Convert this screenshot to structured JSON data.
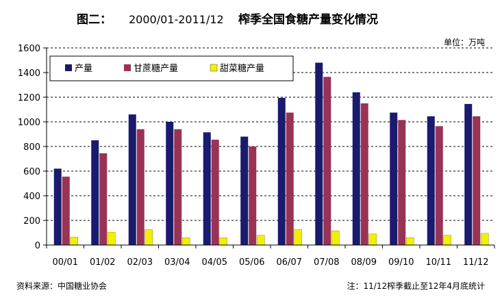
{
  "chart_data": {
    "type": "bar",
    "title_prefix": "图二：",
    "title_range": "2000/01-2011/12",
    "title_main": "榨季全国食糖产量变化情况",
    "unit": "单位：万吨",
    "categories": [
      "00/01",
      "01/02",
      "02/03",
      "03/04",
      "04/05",
      "05/06",
      "06/07",
      "07/08",
      "08/09",
      "09/10",
      "10/11",
      "11/12"
    ],
    "ylim": [
      0,
      1600
    ],
    "yticks": [
      0,
      200,
      400,
      600,
      800,
      1000,
      1200,
      1400,
      1600
    ],
    "grid": true,
    "legend_position": "top-left",
    "series": [
      {
        "name": "产量",
        "color": "#1a1a6e",
        "values": [
          620,
          850,
          1060,
          1000,
          915,
          880,
          1195,
          1480,
          1240,
          1075,
          1045,
          1145
        ]
      },
      {
        "name": "甘蔗糖产量",
        "color": "#993355",
        "values": [
          555,
          745,
          940,
          940,
          855,
          800,
          1075,
          1365,
          1150,
          1015,
          965,
          1045
        ]
      },
      {
        "name": "甜菜糖产量",
        "color": "#f0f000",
        "values": [
          65,
          105,
          125,
          60,
          60,
          80,
          125,
          115,
          90,
          60,
          80,
          95
        ]
      }
    ],
    "source": "资料来源：中国糖业协会",
    "note": "注：11/12榨季截止至12年4月底统计"
  }
}
